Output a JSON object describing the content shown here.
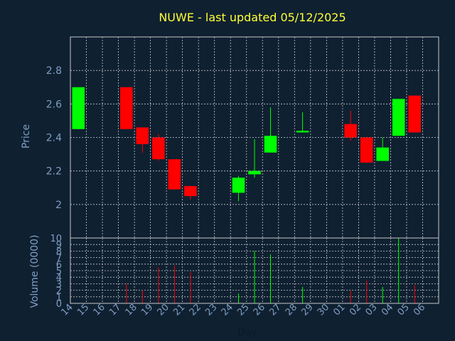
{
  "chart_data": {
    "type": "candlestick",
    "title": "NUWE - last updated 05/12/2025",
    "ylabel": "Price",
    "volume_label": "Volume (0000)",
    "xlabel": "Day",
    "x_ticks": [
      "14",
      "15",
      "16",
      "17",
      "18",
      "19",
      "20",
      "21",
      "22",
      "23",
      "24",
      "25",
      "26",
      "27",
      "28",
      "29",
      "30",
      "01",
      "02",
      "03",
      "04",
      "05",
      "06"
    ],
    "price_ticks": [
      "2",
      "2.2",
      "2.4",
      "2.6",
      "2.8"
    ],
    "price_tick_values": [
      2,
      2.2,
      2.4,
      2.6,
      2.8
    ],
    "price_ylim": [
      1.8,
      3.0
    ],
    "volume_ticks": [
      "0",
      "1",
      "2",
      "3",
      "4",
      "5",
      "6",
      "7",
      "8",
      "9",
      "10"
    ],
    "volume_ylim": [
      0,
      10
    ],
    "grid": true,
    "colors": {
      "up": "#00ff00",
      "down": "#ff0000",
      "background": "#0f2031",
      "title": "#ffff33",
      "axis_text": "#7f9fc3",
      "grid": "#c8c8c8"
    },
    "series": [
      {
        "day": "14",
        "open": 2.45,
        "high": 2.7,
        "low": 2.45,
        "close": 2.7,
        "volume": 0
      },
      {
        "day": "17",
        "open": 2.7,
        "high": 2.7,
        "low": 2.45,
        "close": 2.45,
        "volume": 3
      },
      {
        "day": "18",
        "open": 2.46,
        "high": 2.46,
        "low": 2.31,
        "close": 2.36,
        "volume": 2
      },
      {
        "day": "19",
        "open": 2.4,
        "high": 2.42,
        "low": 2.26,
        "close": 2.27,
        "volume": 5.5
      },
      {
        "day": "20",
        "open": 2.27,
        "high": 2.27,
        "low": 2.09,
        "close": 2.09,
        "volume": 5.8
      },
      {
        "day": "21",
        "open": 2.11,
        "high": 2.11,
        "low": 2.03,
        "close": 2.05,
        "volume": 4.8
      },
      {
        "day": "24",
        "open": 2.07,
        "high": 2.17,
        "low": 2.02,
        "close": 2.16,
        "volume": 1.5
      },
      {
        "day": "25",
        "open": 2.18,
        "high": 2.39,
        "low": 2.16,
        "close": 2.2,
        "volume": 8
      },
      {
        "day": "26",
        "open": 2.31,
        "high": 2.58,
        "low": 2.31,
        "close": 2.41,
        "volume": 7.5
      },
      {
        "day": "28",
        "open": 2.43,
        "high": 2.55,
        "low": 2.43,
        "close": 2.44,
        "volume": 2.5
      },
      {
        "day": "01",
        "open": 2.48,
        "high": 2.56,
        "low": 2.38,
        "close": 2.4,
        "volume": 2
      },
      {
        "day": "02",
        "open": 2.4,
        "high": 2.4,
        "low": 2.25,
        "close": 2.25,
        "volume": 3.5
      },
      {
        "day": "03",
        "open": 2.26,
        "high": 2.4,
        "low": 2.26,
        "close": 2.34,
        "volume": 2.5
      },
      {
        "day": "04",
        "open": 2.41,
        "high": 2.63,
        "low": 2.41,
        "close": 2.63,
        "volume": 10
      },
      {
        "day": "05",
        "open": 2.65,
        "high": 2.65,
        "low": 2.43,
        "close": 2.43,
        "volume": 2.8
      }
    ]
  }
}
